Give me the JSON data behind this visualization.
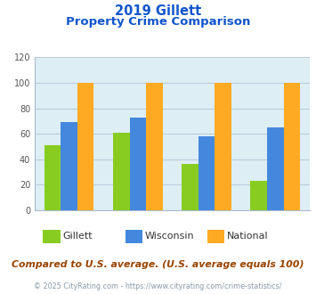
{
  "title_line1": "2019 Gillett",
  "title_line2": "Property Crime Comparison",
  "series": {
    "Gillett": [
      51,
      61,
      36,
      23
    ],
    "Wisconsin": [
      69,
      73,
      58,
      65
    ],
    "National": [
      100,
      100,
      100,
      100
    ]
  },
  "colors": {
    "Gillett": "#88cc22",
    "Wisconsin": "#4488dd",
    "National": "#ffaa22"
  },
  "ylim": [
    0,
    120
  ],
  "yticks": [
    0,
    20,
    40,
    60,
    80,
    100,
    120
  ],
  "title_color": "#1155cc",
  "background_color": "#ddeef5",
  "grid_color": "#bbccdd",
  "footer_text": "Compared to U.S. average. (U.S. average equals 100)",
  "copyright_text": "© 2025 CityRating.com - https://www.cityrating.com/crime-statistics/",
  "footer_color": "#994400",
  "copyright_color": "#8899aa"
}
